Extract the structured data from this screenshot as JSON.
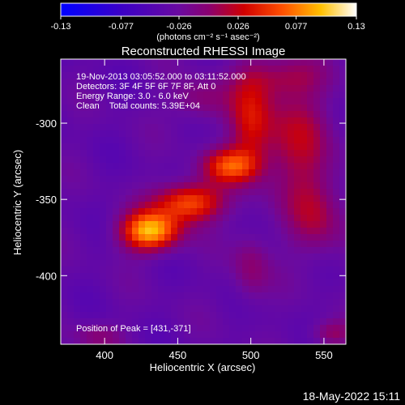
{
  "chart_data": {
    "type": "heatmap",
    "title": "Reconstructed RHESSI Image",
    "xlabel": "Heliocentric X (arcsec)",
    "ylabel": "Heliocentric Y (arcsec)",
    "xlim": [
      370,
      565
    ],
    "ylim": [
      -445,
      -258
    ],
    "x_ticks": [
      400,
      450,
      500,
      550
    ],
    "y_ticks": [
      -300,
      -350,
      -400
    ],
    "colorbar": {
      "range": [
        -0.13,
        0.13
      ],
      "ticks": [
        "-0.13",
        "-0.077",
        "-0.026",
        "0.026",
        "0.077",
        "0.13"
      ],
      "tick_values": [
        -0.13,
        -0.077,
        -0.026,
        0.026,
        0.077,
        0.13
      ],
      "units": "(photons cm⁻² s⁻¹ asec⁻²)"
    },
    "annotations": [
      "19-Nov-2013 03:05:52.000 to 03:11:52.000",
      "Detectors: 3F 4F 5F 6F 7F 8F, Att 0",
      "Energy Range: 3.0 - 6.0 keV",
      "Clean    Total counts: 5.39E+04"
    ],
    "peak_label": "Position of Peak = [431,-371]",
    "peak": [
      431,
      -371
    ],
    "sources": [
      {
        "x": 431,
        "y": -371,
        "sx": 14,
        "sy": 9,
        "amp": 0.13
      },
      {
        "x": 458,
        "y": -352,
        "sx": 16,
        "sy": 9,
        "amp": 0.1
      },
      {
        "x": 486,
        "y": -328,
        "sx": 13,
        "sy": 8,
        "amp": 0.085
      },
      {
        "x": 500,
        "y": -300,
        "sx": 10,
        "sy": 22,
        "amp": 0.06
      },
      {
        "x": 530,
        "y": -310,
        "sx": 18,
        "sy": 25,
        "amp": 0.05
      },
      {
        "x": 545,
        "y": -360,
        "sx": 14,
        "sy": 20,
        "amp": 0.045
      },
      {
        "x": 465,
        "y": -285,
        "sx": 14,
        "sy": 10,
        "amp": 0.035
      },
      {
        "x": 500,
        "y": -395,
        "sx": 9,
        "sy": 16,
        "amp": 0.035
      },
      {
        "x": 520,
        "y": -270,
        "sx": 20,
        "sy": 10,
        "amp": 0.04
      },
      {
        "x": 555,
        "y": -438,
        "sx": 10,
        "sy": 6,
        "amp": 0.04
      },
      {
        "x": 395,
        "y": -440,
        "sx": 12,
        "sy": 6,
        "amp": 0.03
      }
    ],
    "background": -0.035
  },
  "footer": {
    "timestamp": "18-May-2022 15:11"
  }
}
